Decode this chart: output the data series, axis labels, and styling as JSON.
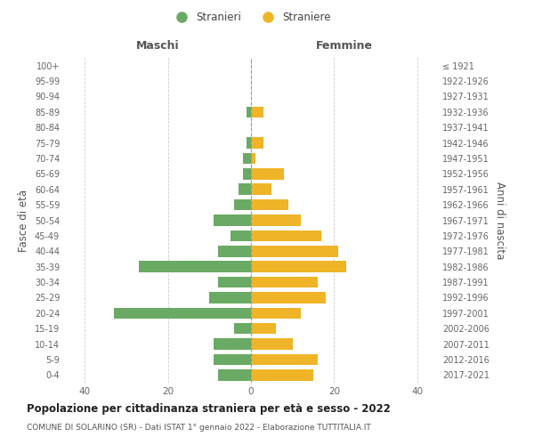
{
  "age_groups": [
    "100+",
    "95-99",
    "90-94",
    "85-89",
    "80-84",
    "75-79",
    "70-74",
    "65-69",
    "60-64",
    "55-59",
    "50-54",
    "45-49",
    "40-44",
    "35-39",
    "30-34",
    "25-29",
    "20-24",
    "15-19",
    "10-14",
    "5-9",
    "0-4"
  ],
  "birth_years": [
    "≤ 1921",
    "1922-1926",
    "1927-1931",
    "1932-1936",
    "1937-1941",
    "1942-1946",
    "1947-1951",
    "1952-1956",
    "1957-1961",
    "1962-1966",
    "1967-1971",
    "1972-1976",
    "1977-1981",
    "1982-1986",
    "1987-1991",
    "1992-1996",
    "1997-2001",
    "2002-2006",
    "2007-2011",
    "2012-2016",
    "2017-2021"
  ],
  "males": [
    0,
    0,
    0,
    1,
    0,
    1,
    2,
    2,
    3,
    4,
    9,
    5,
    8,
    27,
    8,
    10,
    33,
    4,
    9,
    9,
    8
  ],
  "females": [
    0,
    0,
    0,
    3,
    0,
    3,
    1,
    8,
    5,
    9,
    12,
    17,
    21,
    23,
    16,
    18,
    12,
    6,
    10,
    16,
    15
  ],
  "male_color": "#6aaa64",
  "female_color": "#f0b429",
  "title": "Popolazione per cittadinanza straniera per età e sesso - 2022",
  "subtitle": "COMUNE DI SOLARINO (SR) - Dati ISTAT 1° gennaio 2022 - Elaborazione TUTTITALIA.IT",
  "xlabel_left": "Maschi",
  "xlabel_right": "Femmine",
  "ylabel_left": "Fasce di età",
  "ylabel_right": "Anni di nascita",
  "xlim": 45,
  "legend_stranieri": "Stranieri",
  "legend_straniere": "Straniere",
  "background_color": "#ffffff",
  "grid_color": "#cccccc"
}
